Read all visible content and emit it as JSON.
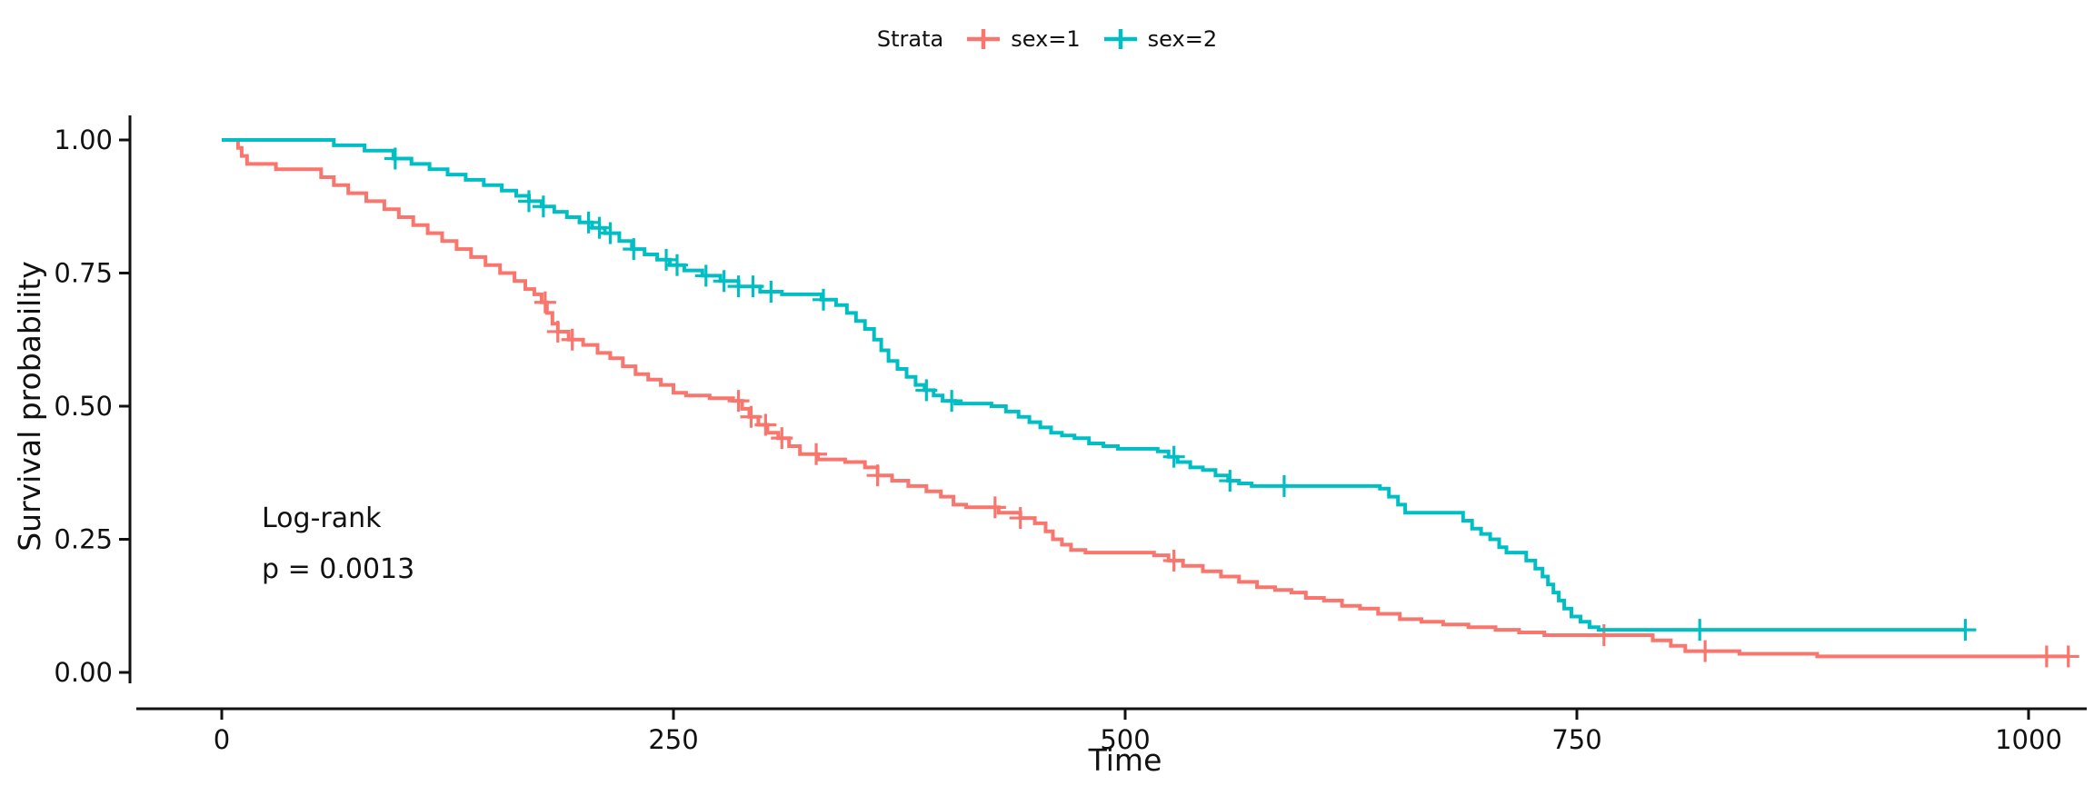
{
  "page": {
    "background": "#ffffff"
  },
  "chart_data": {
    "type": "line",
    "subtype": "kaplan_meier_step_curve",
    "title": "",
    "xlabel": "Time",
    "ylabel": "Survival probability",
    "xlim": [
      0,
      1040
    ],
    "ylim": [
      0,
      1
    ],
    "x_ticks": [
      0,
      250,
      500,
      750,
      1000
    ],
    "x_tick_labels": [
      "0",
      "250",
      "500",
      "750",
      "1000"
    ],
    "y_ticks": [
      0,
      0.25,
      0.5,
      0.75,
      1
    ],
    "y_tick_labels": [
      "0.00",
      "0.25",
      "0.50",
      "0.75",
      "1.00"
    ],
    "grid": false,
    "legend": {
      "title": "Strata",
      "position": "top"
    },
    "annotation": {
      "lines": [
        "Log-rank",
        "p = 0.0013"
      ]
    },
    "series": [
      {
        "name": "sex=1",
        "color": "#F8766D",
        "steps": [
          [
            0,
            1.0
          ],
          [
            9,
            0.985
          ],
          [
            11,
            0.97
          ],
          [
            14,
            0.955
          ],
          [
            30,
            0.945
          ],
          [
            55,
            0.93
          ],
          [
            62,
            0.915
          ],
          [
            70,
            0.9
          ],
          [
            80,
            0.885
          ],
          [
            90,
            0.87
          ],
          [
            98,
            0.855
          ],
          [
            106,
            0.84
          ],
          [
            114,
            0.825
          ],
          [
            122,
            0.81
          ],
          [
            130,
            0.795
          ],
          [
            138,
            0.78
          ],
          [
            146,
            0.765
          ],
          [
            154,
            0.75
          ],
          [
            162,
            0.735
          ],
          [
            168,
            0.72
          ],
          [
            173,
            0.71
          ],
          [
            177,
            0.695
          ],
          [
            180,
            0.675
          ],
          [
            183,
            0.655
          ],
          [
            186,
            0.64
          ],
          [
            192,
            0.625
          ],
          [
            200,
            0.615
          ],
          [
            208,
            0.6
          ],
          [
            215,
            0.59
          ],
          [
            222,
            0.575
          ],
          [
            229,
            0.56
          ],
          [
            236,
            0.55
          ],
          [
            243,
            0.54
          ],
          [
            250,
            0.525
          ],
          [
            257,
            0.52
          ],
          [
            270,
            0.515
          ],
          [
            283,
            0.51
          ],
          [
            288,
            0.495
          ],
          [
            292,
            0.48
          ],
          [
            297,
            0.465
          ],
          [
            302,
            0.45
          ],
          [
            308,
            0.44
          ],
          [
            314,
            0.425
          ],
          [
            320,
            0.41
          ],
          [
            330,
            0.4
          ],
          [
            345,
            0.395
          ],
          [
            356,
            0.385
          ],
          [
            363,
            0.37
          ],
          [
            371,
            0.36
          ],
          [
            380,
            0.35
          ],
          [
            390,
            0.34
          ],
          [
            398,
            0.33
          ],
          [
            405,
            0.315
          ],
          [
            412,
            0.31
          ],
          [
            430,
            0.3
          ],
          [
            442,
            0.29
          ],
          [
            450,
            0.28
          ],
          [
            456,
            0.265
          ],
          [
            460,
            0.25
          ],
          [
            465,
            0.24
          ],
          [
            470,
            0.23
          ],
          [
            478,
            0.225
          ],
          [
            516,
            0.22
          ],
          [
            524,
            0.21
          ],
          [
            532,
            0.2
          ],
          [
            543,
            0.19
          ],
          [
            553,
            0.18
          ],
          [
            563,
            0.17
          ],
          [
            573,
            0.16
          ],
          [
            583,
            0.155
          ],
          [
            592,
            0.15
          ],
          [
            600,
            0.14
          ],
          [
            610,
            0.135
          ],
          [
            620,
            0.125
          ],
          [
            630,
            0.12
          ],
          [
            640,
            0.11
          ],
          [
            652,
            0.1
          ],
          [
            664,
            0.095
          ],
          [
            676,
            0.09
          ],
          [
            690,
            0.085
          ],
          [
            705,
            0.08
          ],
          [
            718,
            0.075
          ],
          [
            732,
            0.07
          ],
          [
            792,
            0.06
          ],
          [
            802,
            0.05
          ],
          [
            810,
            0.04
          ],
          [
            840,
            0.035
          ],
          [
            883,
            0.03
          ],
          [
            1022,
            0.03
          ]
        ],
        "censor_times": [
          179,
          186,
          194,
          286,
          293,
          301,
          310,
          329,
          363,
          428,
          442,
          527,
          765,
          821,
          1010,
          1022
        ]
      },
      {
        "name": "sex=2",
        "color": "#00BFC4",
        "steps": [
          [
            0,
            1.0
          ],
          [
            62,
            0.99
          ],
          [
            79,
            0.98
          ],
          [
            95,
            0.965
          ],
          [
            105,
            0.955
          ],
          [
            115,
            0.945
          ],
          [
            125,
            0.935
          ],
          [
            135,
            0.925
          ],
          [
            145,
            0.915
          ],
          [
            155,
            0.905
          ],
          [
            163,
            0.895
          ],
          [
            170,
            0.885
          ],
          [
            177,
            0.875
          ],
          [
            184,
            0.865
          ],
          [
            191,
            0.855
          ],
          [
            198,
            0.845
          ],
          [
            205,
            0.835
          ],
          [
            212,
            0.825
          ],
          [
            220,
            0.81
          ],
          [
            227,
            0.795
          ],
          [
            234,
            0.785
          ],
          [
            241,
            0.775
          ],
          [
            248,
            0.765
          ],
          [
            256,
            0.755
          ],
          [
            266,
            0.745
          ],
          [
            276,
            0.735
          ],
          [
            286,
            0.725
          ],
          [
            298,
            0.715
          ],
          [
            310,
            0.71
          ],
          [
            332,
            0.7
          ],
          [
            340,
            0.69
          ],
          [
            346,
            0.675
          ],
          [
            351,
            0.66
          ],
          [
            356,
            0.645
          ],
          [
            361,
            0.625
          ],
          [
            365,
            0.605
          ],
          [
            369,
            0.585
          ],
          [
            374,
            0.57
          ],
          [
            379,
            0.555
          ],
          [
            384,
            0.54
          ],
          [
            389,
            0.53
          ],
          [
            394,
            0.52
          ],
          [
            399,
            0.51
          ],
          [
            406,
            0.505
          ],
          [
            426,
            0.5
          ],
          [
            434,
            0.49
          ],
          [
            441,
            0.48
          ],
          [
            447,
            0.47
          ],
          [
            453,
            0.46
          ],
          [
            459,
            0.45
          ],
          [
            465,
            0.445
          ],
          [
            472,
            0.44
          ],
          [
            480,
            0.43
          ],
          [
            488,
            0.425
          ],
          [
            496,
            0.42
          ],
          [
            518,
            0.415
          ],
          [
            524,
            0.405
          ],
          [
            529,
            0.395
          ],
          [
            536,
            0.385
          ],
          [
            543,
            0.38
          ],
          [
            550,
            0.37
          ],
          [
            557,
            0.36
          ],
          [
            563,
            0.355
          ],
          [
            570,
            0.35
          ],
          [
            641,
            0.345
          ],
          [
            646,
            0.33
          ],
          [
            651,
            0.315
          ],
          [
            655,
            0.3
          ],
          [
            687,
            0.285
          ],
          [
            692,
            0.27
          ],
          [
            697,
            0.26
          ],
          [
            702,
            0.25
          ],
          [
            707,
            0.235
          ],
          [
            711,
            0.225
          ],
          [
            722,
            0.21
          ],
          [
            727,
            0.195
          ],
          [
            731,
            0.18
          ],
          [
            734,
            0.165
          ],
          [
            737,
            0.15
          ],
          [
            740,
            0.135
          ],
          [
            743,
            0.12
          ],
          [
            747,
            0.105
          ],
          [
            752,
            0.095
          ],
          [
            757,
            0.085
          ],
          [
            762,
            0.08
          ],
          [
            965,
            0.08
          ]
        ],
        "censor_times": [
          96,
          170,
          178,
          203,
          209,
          215,
          228,
          246,
          252,
          268,
          278,
          286,
          294,
          304,
          333,
          390,
          404,
          527,
          558,
          588,
          818,
          965
        ]
      }
    ]
  }
}
